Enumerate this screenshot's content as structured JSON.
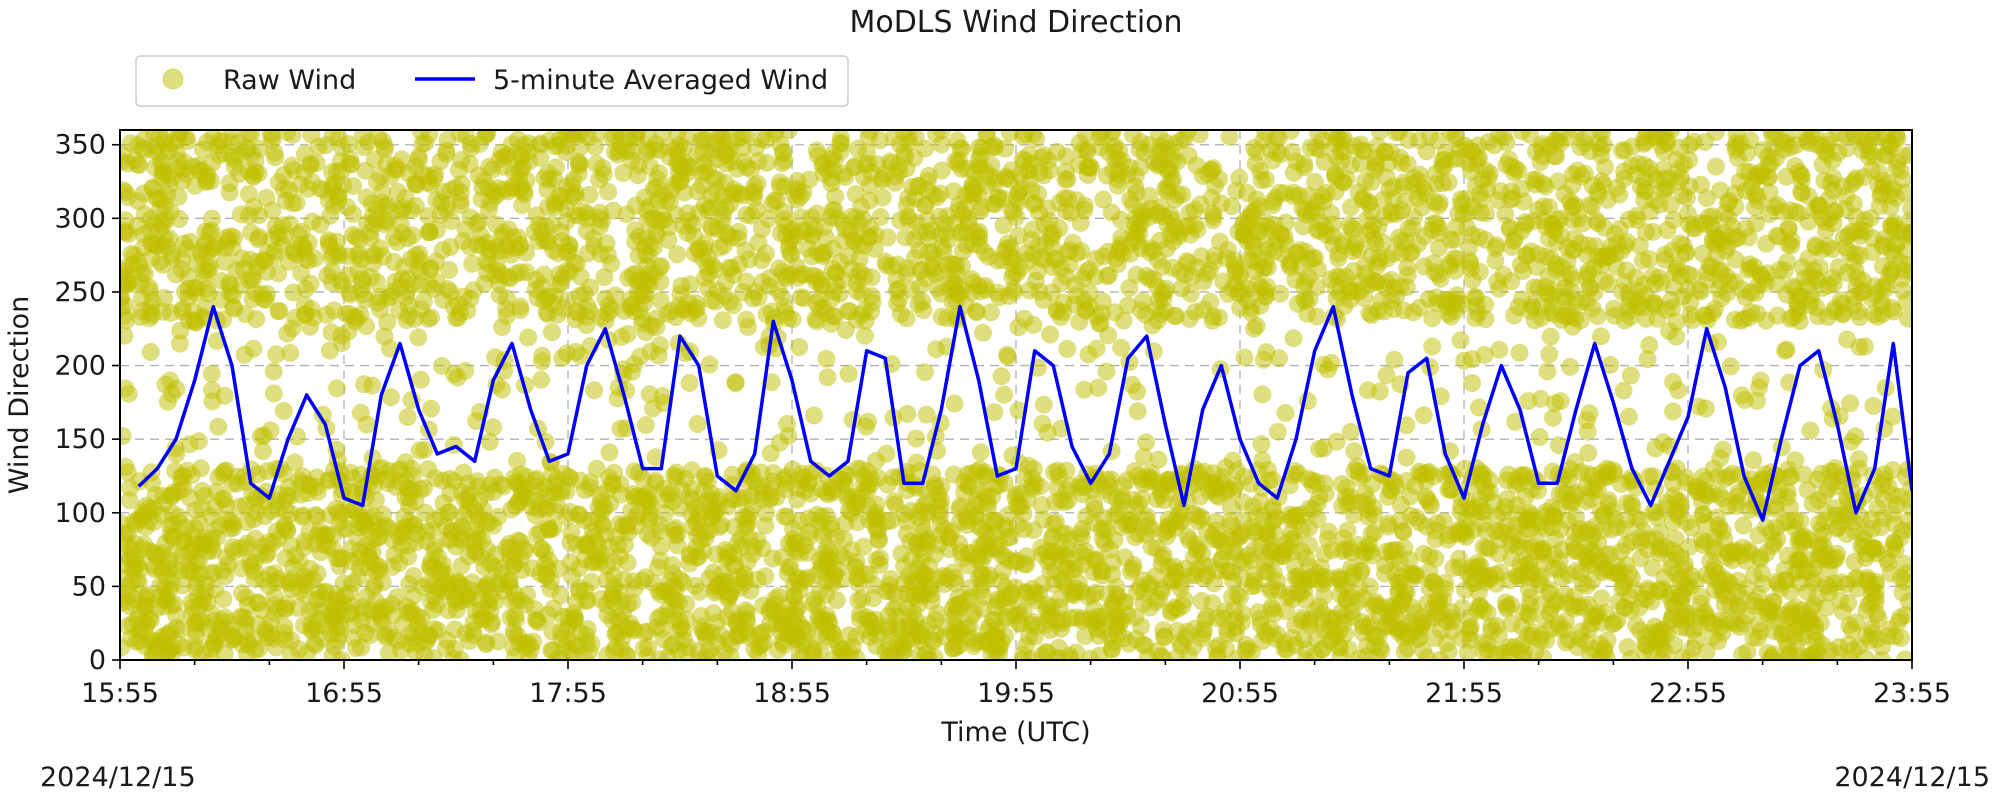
{
  "chart_data": {
    "type": "scatter",
    "title": "MoDLS Wind Direction",
    "xlabel": "Time (UTC)",
    "ylabel": "Wind Direction",
    "ylim": [
      0,
      360
    ],
    "xlim": [
      "15:55",
      "23:55"
    ],
    "x_ticks": [
      "15:55",
      "16:55",
      "17:55",
      "18:55",
      "19:55",
      "20:55",
      "21:55",
      "22:55",
      "23:55"
    ],
    "y_ticks": [
      0,
      50,
      100,
      150,
      200,
      250,
      300,
      350
    ],
    "grid": true,
    "legend": {
      "placement": "top-left",
      "entries": [
        "Raw Wind",
        "5-minute Averaged Wind"
      ]
    },
    "date_left": "2024/12/15",
    "date_right": "2024/12/15",
    "series": [
      {
        "name": "Raw Wind",
        "style": "scatter",
        "color": "#bfbf00",
        "opacity": 0.5,
        "note_values": "dense scatter covering 0-360 throughout the period"
      },
      {
        "name": "5-minute Averaged Wind",
        "style": "line",
        "color": "#0000ff",
        "x": [
          "16:00",
          "16:05",
          "16:10",
          "16:15",
          "16:20",
          "16:25",
          "16:30",
          "16:35",
          "16:40",
          "16:45",
          "16:50",
          "16:55",
          "17:00",
          "17:05",
          "17:10",
          "17:15",
          "17:20",
          "17:25",
          "17:30",
          "17:35",
          "17:40",
          "17:45",
          "17:50",
          "17:55",
          "18:00",
          "18:05",
          "18:10",
          "18:15",
          "18:20",
          "18:25",
          "18:30",
          "18:35",
          "18:40",
          "18:45",
          "18:50",
          "18:55",
          "19:00",
          "19:05",
          "19:10",
          "19:15",
          "19:20",
          "19:25",
          "19:30",
          "19:35",
          "19:40",
          "19:45",
          "19:50",
          "19:55",
          "20:00",
          "20:05",
          "20:10",
          "20:15",
          "20:20",
          "20:25",
          "20:30",
          "20:35",
          "20:40",
          "20:45",
          "20:50",
          "20:55",
          "21:00",
          "21:05",
          "21:10",
          "21:15",
          "21:20",
          "21:25",
          "21:30",
          "21:35",
          "21:40",
          "21:45",
          "21:50",
          "21:55",
          "22:00",
          "22:05",
          "22:10",
          "22:15",
          "22:20",
          "22:25",
          "22:30",
          "22:35",
          "22:40",
          "22:45",
          "22:50",
          "22:55",
          "23:00",
          "23:05",
          "23:10",
          "23:15",
          "23:20",
          "23:25",
          "23:30",
          "23:35",
          "23:40",
          "23:45",
          "23:50",
          "23:55"
        ],
        "values": [
          118,
          130,
          150,
          190,
          240,
          200,
          120,
          110,
          150,
          180,
          160,
          110,
          105,
          180,
          215,
          170,
          140,
          145,
          135,
          190,
          215,
          170,
          135,
          140,
          200,
          225,
          180,
          130,
          130,
          220,
          200,
          125,
          115,
          140,
          230,
          190,
          135,
          125,
          135,
          210,
          205,
          120,
          120,
          170,
          240,
          190,
          125,
          130,
          210,
          200,
          145,
          120,
          140,
          205,
          220,
          160,
          105,
          170,
          200,
          150,
          120,
          110,
          150,
          210,
          240,
          180,
          130,
          125,
          195,
          205,
          140,
          110,
          160,
          200,
          170,
          120,
          120,
          170,
          215,
          175,
          130,
          105,
          135,
          165,
          225,
          185,
          125,
          95,
          150,
          200,
          210,
          160,
          100,
          130,
          215,
          115
        ]
      }
    ]
  }
}
